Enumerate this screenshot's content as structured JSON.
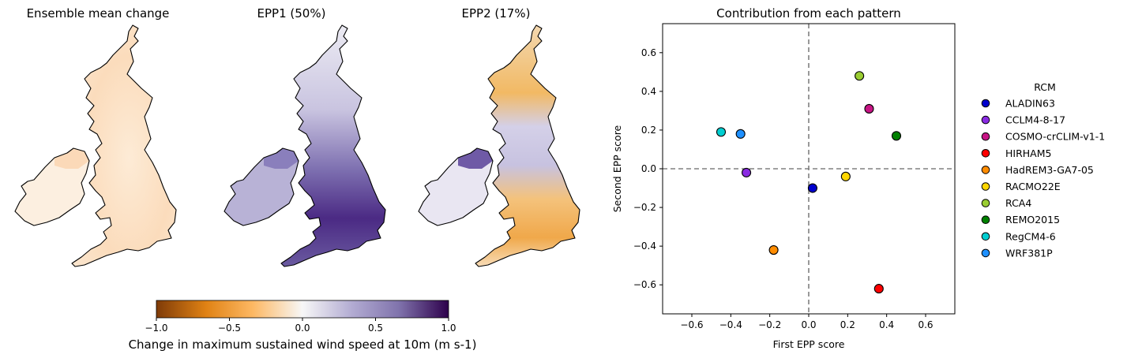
{
  "maps": [
    {
      "title": "Ensemble mean change"
    },
    {
      "title": "EPP1 (50%)"
    },
    {
      "title": "EPP2 (17%)"
    }
  ],
  "colorbar": {
    "label": "Change in maximum sustained wind speed at 10m (m s-1)",
    "ticks": [
      "−1.0",
      "−0.5",
      "0.0",
      "0.5",
      "1.0"
    ],
    "range": [
      -1.0,
      1.0
    ],
    "colormap": [
      "#7f3b08",
      "#e08214",
      "#fdb863",
      "#f7f7f7",
      "#b2abd2",
      "#8073ac",
      "#2d004b"
    ]
  },
  "chart_data": {
    "type": "scatter",
    "title": "Contribution from each pattern",
    "xlabel": "First EPP score",
    "ylabel": "Second EPP score",
    "xlim": [
      -0.75,
      0.75
    ],
    "ylim": [
      -0.75,
      0.75
    ],
    "xticks": [
      -0.6,
      -0.4,
      -0.2,
      0.0,
      0.2,
      0.4,
      0.6
    ],
    "yticks": [
      -0.6,
      -0.4,
      -0.2,
      0.0,
      0.2,
      0.4,
      0.6
    ],
    "xtick_labels": [
      "−0.6",
      "−0.4",
      "−0.2",
      "0.0",
      "0.2",
      "0.4",
      "0.6"
    ],
    "ytick_labels": [
      "−0.6",
      "−0.4",
      "−0.2",
      "0.0",
      "0.2",
      "0.4",
      "0.6"
    ],
    "reference_lines": {
      "x": 0.0,
      "y": 0.0,
      "style": "dashed",
      "color": "#808080"
    },
    "grid": false,
    "legend": {
      "title": "RCM",
      "position": "outside-right"
    },
    "series": [
      {
        "name": "ALADIN63",
        "color": "#0000cd",
        "x": 0.02,
        "y": -0.1
      },
      {
        "name": "CCLM4-8-17",
        "color": "#8a2be2",
        "x": -0.32,
        "y": -0.02
      },
      {
        "name": "COSMO-crCLIM-v1-1",
        "color": "#c71585",
        "x": 0.31,
        "y": 0.31
      },
      {
        "name": "HIRHAM5",
        "color": "#ff0000",
        "x": 0.36,
        "y": -0.62
      },
      {
        "name": "HadREM3-GA7-05",
        "color": "#ff8c00",
        "x": -0.18,
        "y": -0.42
      },
      {
        "name": "RACMO22E",
        "color": "#ffd700",
        "x": 0.19,
        "y": -0.04
      },
      {
        "name": "RCA4",
        "color": "#9acd32",
        "x": 0.26,
        "y": 0.48
      },
      {
        "name": "REMO2015",
        "color": "#008000",
        "x": 0.45,
        "y": 0.17
      },
      {
        "name": "RegCM4-6",
        "color": "#00ced1",
        "x": -0.45,
        "y": 0.19
      },
      {
        "name": "WRF381P",
        "color": "#1e90ff",
        "x": -0.35,
        "y": 0.18
      }
    ]
  }
}
